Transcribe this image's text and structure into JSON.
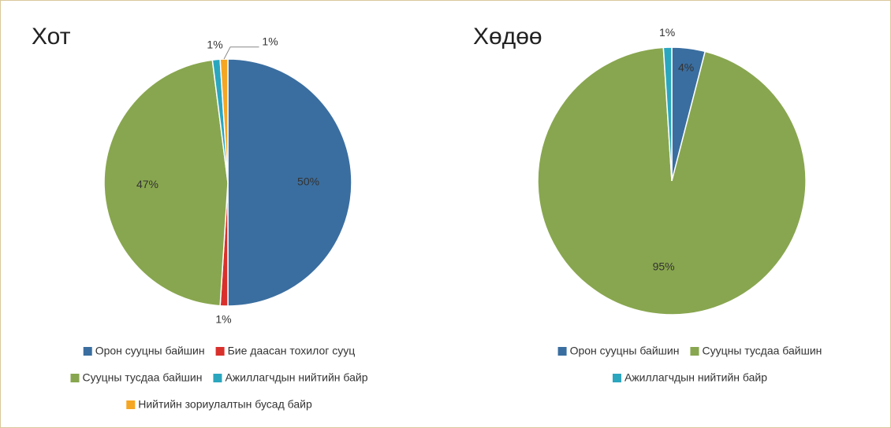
{
  "chart_data": [
    {
      "type": "pie",
      "title": "Хот",
      "categories": [
        "Орон сууцны байшин",
        "Бие даасан тохилог сууц",
        "Сууцны тусдаа байшин",
        "Ажиллагчдын нийтийн байр",
        "Нийтийн зориулалтын бусад байр"
      ],
      "values": [
        50,
        1,
        47,
        1,
        1
      ],
      "value_labels": [
        "50%",
        "1%",
        "47%",
        "1%",
        "1%"
      ],
      "colors": [
        "#3a6ea0",
        "#d9302c",
        "#88a64f",
        "#2ba6bf",
        "#f5a623"
      ]
    },
    {
      "type": "pie",
      "title": "Хөдөө",
      "categories": [
        "Орон сууцны байшин",
        "Сууцны тусдаа байшин",
        "Ажиллагчдын нийтийн байр"
      ],
      "values": [
        4,
        95,
        1
      ],
      "value_labels": [
        "4%",
        "95%",
        "1%"
      ],
      "colors": [
        "#3a6ea0",
        "#88a64f",
        "#2ba6bf"
      ]
    }
  ]
}
